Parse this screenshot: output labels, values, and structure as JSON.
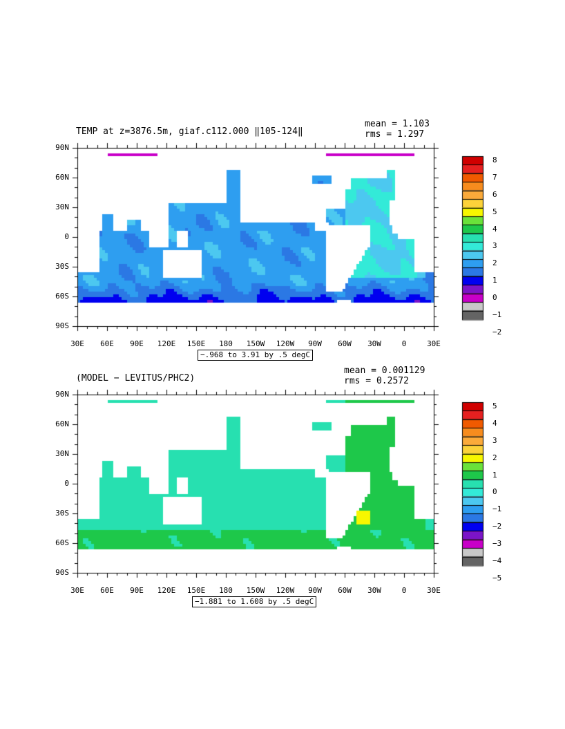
{
  "colors": {
    "bg": "#ffffff",
    "axis": "#000000",
    "contour": "#000000"
  },
  "x_ticks": [
    "30E",
    "60E",
    "90E",
    "120E",
    "150E",
    "180",
    "150W",
    "120W",
    "90W",
    "60W",
    "30W",
    "0",
    "30E"
  ],
  "y_ticks": [
    "90N",
    "60N",
    "30N",
    "0",
    "30S",
    "60S",
    "90S"
  ],
  "panels": [
    {
      "title": "TEMP at z=3876.5m, giaf.c112.000 ‖105-124‖",
      "mean": "mean = 1.103",
      "rms": "rms = 1.297",
      "range": "−.968 to 3.91 by .5 degC",
      "colorbar_labels": [
        "8",
        "7",
        "6",
        "5",
        "4",
        "3",
        "2",
        "1",
        "0",
        "−1",
        "−2"
      ],
      "colorbar_colors": [
        "#d00000",
        "#e62020",
        "#f05a00",
        "#f78c1e",
        "#fbaa3a",
        "#fcd23a",
        "#f7f700",
        "#6ae23a",
        "#1ec84a",
        "#27e0b0",
        "#33ead8",
        "#4cc8f0",
        "#2e9ef0",
        "#2b78e4",
        "#0000f0",
        "#7b14c8",
        "#c800c8",
        "#c8c8c8",
        "#646464"
      ],
      "field": "temperature"
    },
    {
      "title": "(MODEL − LEVITUS/PHC2)",
      "mean": "mean = 0.001129",
      "rms": "rms = 0.2572",
      "range": "−1.881 to 1.608 by .5 degC",
      "colorbar_labels": [
        "5",
        "4",
        "3",
        "2",
        "1",
        "0",
        "−1",
        "−2",
        "−3",
        "−4",
        "−5"
      ],
      "colorbar_colors": [
        "#d00000",
        "#e62020",
        "#f05a00",
        "#f78c1e",
        "#fbaa3a",
        "#fcd23a",
        "#f7f700",
        "#6ae23a",
        "#1ec84a",
        "#27e0b0",
        "#33ead8",
        "#4cc8f0",
        "#2e9ef0",
        "#2b78e4",
        "#0000f0",
        "#7b14c8",
        "#c800c8",
        "#c8c8c8",
        "#646464"
      ],
      "field": "difference"
    }
  ]
}
